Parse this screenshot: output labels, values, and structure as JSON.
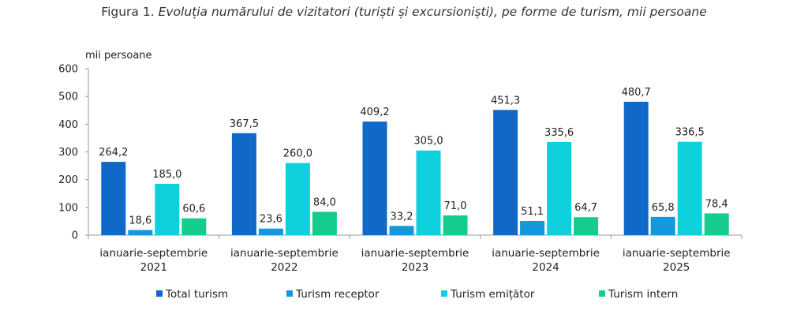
{
  "title_prefix": "Figura 1.",
  "title_text": "Evoluția numărului de vizitatori (turiști și excursioniști), pe forme de turism, mii persoane",
  "chart_data": {
    "type": "bar",
    "ylabel": "mii persoane",
    "ylim": [
      0,
      600
    ],
    "yticks": [
      0,
      100,
      200,
      300,
      400,
      500,
      600
    ],
    "categories": [
      [
        "ianuarie-septembrie",
        "2021"
      ],
      [
        "ianuarie-septembrie",
        "2022"
      ],
      [
        "ianuarie-septembrie",
        "2023"
      ],
      [
        "ianuarie-septembrie",
        "2024"
      ],
      [
        "ianuarie-septembrie",
        "2025"
      ]
    ],
    "series": [
      {
        "name": "Total turism",
        "color": "#1069C6",
        "values": [
          264.2,
          367.5,
          409.2,
          451.3,
          480.7
        ],
        "labels": [
          "264,2",
          "367,5",
          "409,2",
          "451,3",
          "480,7"
        ]
      },
      {
        "name": "Turism receptor",
        "color": "#1497DB",
        "values": [
          18.6,
          23.6,
          33.2,
          51.1,
          65.8
        ],
        "labels": [
          "18,6",
          "23,6",
          "33,2",
          "51,1",
          "65,8"
        ]
      },
      {
        "name": "Turism emițător",
        "color": "#0FD1DE",
        "values": [
          185.0,
          260.0,
          305.0,
          335.6,
          336.5
        ],
        "labels": [
          "185,0",
          "260,0",
          "305,0",
          "335,6",
          "336,5"
        ]
      },
      {
        "name": "Turism intern",
        "color": "#14CC8C",
        "values": [
          60.6,
          84.0,
          71.0,
          64.7,
          78.4
        ],
        "labels": [
          "60,6",
          "84,0",
          "71,0",
          "64,7",
          "78,4"
        ]
      }
    ],
    "legend_position": "bottom",
    "grid": false
  }
}
